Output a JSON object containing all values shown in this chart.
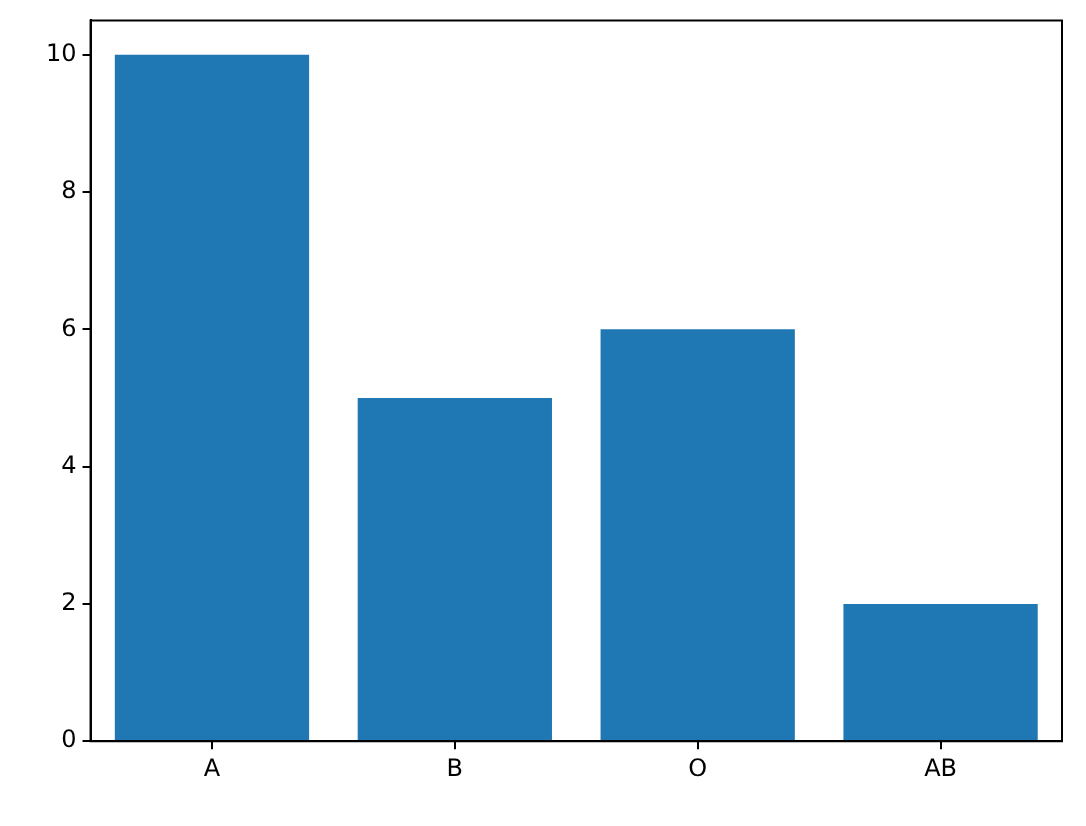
{
  "chart_data": {
    "type": "bar",
    "categories": [
      "A",
      "B",
      "O",
      "AB"
    ],
    "values": [
      10,
      5,
      6,
      2
    ],
    "color": "#1f77b4",
    "ylim": [
      0,
      10.5
    ],
    "yticks": [
      0,
      2,
      4,
      6,
      8,
      10
    ],
    "grid": false
  }
}
